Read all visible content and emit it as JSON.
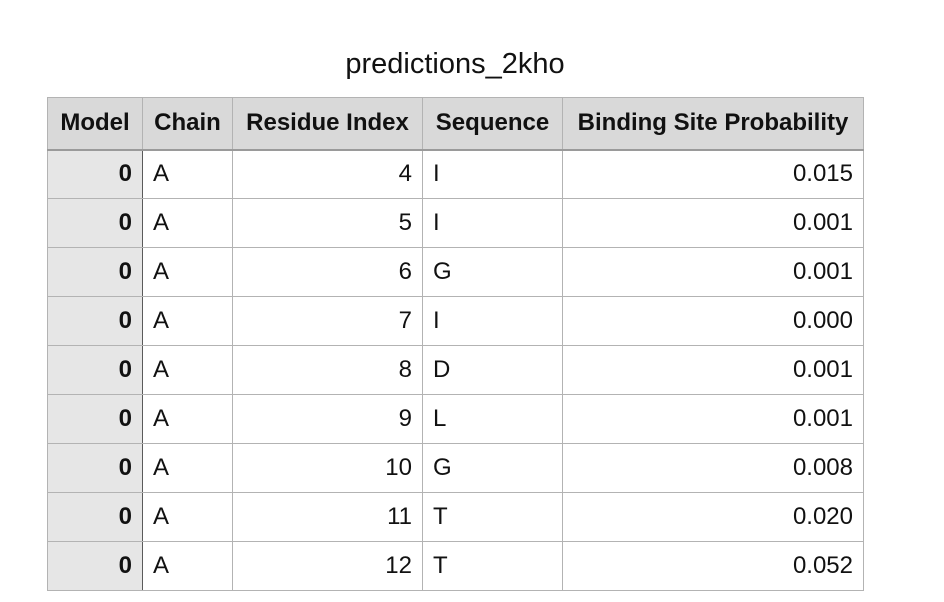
{
  "title": "predictions_2kho",
  "columns": [
    "Model",
    "Chain",
    "Residue Index",
    "Sequence",
    "Binding Site Probability"
  ],
  "rows": [
    {
      "model": "0",
      "chain": "A",
      "residue_index": "4",
      "sequence": "I",
      "probability": "0.015"
    },
    {
      "model": "0",
      "chain": "A",
      "residue_index": "5",
      "sequence": "I",
      "probability": "0.001"
    },
    {
      "model": "0",
      "chain": "A",
      "residue_index": "6",
      "sequence": "G",
      "probability": "0.001"
    },
    {
      "model": "0",
      "chain": "A",
      "residue_index": "7",
      "sequence": "I",
      "probability": "0.000"
    },
    {
      "model": "0",
      "chain": "A",
      "residue_index": "8",
      "sequence": "D",
      "probability": "0.001"
    },
    {
      "model": "0",
      "chain": "A",
      "residue_index": "9",
      "sequence": "L",
      "probability": "0.001"
    },
    {
      "model": "0",
      "chain": "A",
      "residue_index": "10",
      "sequence": "G",
      "probability": "0.008"
    },
    {
      "model": "0",
      "chain": "A",
      "residue_index": "11",
      "sequence": "T",
      "probability": "0.020"
    },
    {
      "model": "0",
      "chain": "A",
      "residue_index": "12",
      "sequence": "T",
      "probability": "0.052"
    }
  ]
}
